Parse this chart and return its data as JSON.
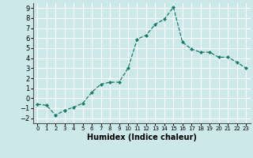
{
  "x": [
    0,
    1,
    2,
    3,
    4,
    5,
    6,
    7,
    8,
    9,
    10,
    11,
    12,
    13,
    14,
    15,
    16,
    17,
    18,
    19,
    20,
    21,
    22,
    23
  ],
  "y": [
    -0.6,
    -0.7,
    -1.7,
    -1.2,
    -0.9,
    -0.5,
    0.6,
    1.4,
    1.6,
    1.6,
    3.0,
    5.9,
    6.3,
    7.4,
    7.9,
    9.1,
    5.6,
    4.9,
    4.6,
    4.6,
    4.1,
    4.1,
    3.6,
    3.0
  ],
  "line_color": "#1a7a6e",
  "marker": "D",
  "marker_size": 2.0,
  "linewidth": 0.9,
  "xlabel": "Humidex (Indice chaleur)",
  "xlim": [
    -0.5,
    23.5
  ],
  "ylim": [
    -2.5,
    9.5
  ],
  "yticks": [
    -2,
    -1,
    0,
    1,
    2,
    3,
    4,
    5,
    6,
    7,
    8,
    9
  ],
  "xticks": [
    0,
    1,
    2,
    3,
    4,
    5,
    6,
    7,
    8,
    9,
    10,
    11,
    12,
    13,
    14,
    15,
    16,
    17,
    18,
    19,
    20,
    21,
    22,
    23
  ],
  "bg_color": "#cce8e8",
  "grid_color": "#ffffff",
  "xlabel_fontsize": 7,
  "tick_fontsize_x": 5.0,
  "tick_fontsize_y": 6.0
}
